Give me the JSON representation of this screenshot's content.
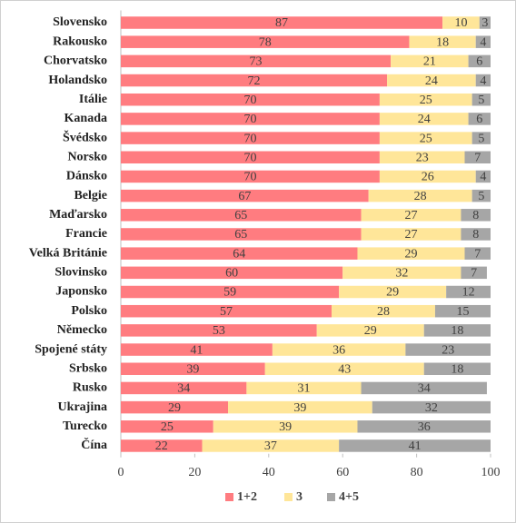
{
  "chart_data": {
    "type": "stacked-bar-horizontal",
    "categories": [
      "Slovensko",
      "Rakousko",
      "Chorvatsko",
      "Holandsko",
      "Itálie",
      "Kanada",
      "Švédsko",
      "Norsko",
      "Dánsko",
      "Belgie",
      "Maďarsko",
      "Francie",
      "Velká Británie",
      "Slovinsko",
      "Japonsko",
      "Polsko",
      "Německo",
      "Spojené státy",
      "Srbsko",
      "Rusko",
      "Ukrajina",
      "Turecko",
      "Čína"
    ],
    "series": [
      {
        "name": "1+2",
        "color": "#ff7c80",
        "values": [
          87,
          78,
          73,
          72,
          70,
          70,
          70,
          70,
          70,
          67,
          65,
          65,
          64,
          60,
          59,
          57,
          53,
          41,
          39,
          34,
          29,
          25,
          22
        ]
      },
      {
        "name": "3",
        "color": "#ffe699",
        "values": [
          10,
          18,
          21,
          24,
          25,
          24,
          25,
          23,
          26,
          28,
          27,
          27,
          29,
          32,
          29,
          28,
          29,
          36,
          43,
          31,
          39,
          39,
          37
        ]
      },
      {
        "name": "4+5",
        "color": "#a6a6a6",
        "values": [
          3,
          4,
          6,
          4,
          5,
          6,
          5,
          7,
          4,
          5,
          8,
          8,
          7,
          7,
          12,
          15,
          18,
          23,
          18,
          34,
          32,
          36,
          41
        ]
      }
    ],
    "xlim": [
      0,
      100
    ],
    "xticks": [
      0,
      20,
      40,
      60,
      80,
      100
    ],
    "legend": "bottom"
  }
}
